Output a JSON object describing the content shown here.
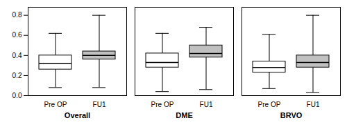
{
  "chart_data": {
    "type": "box",
    "groups": [
      "Overall",
      "DME",
      "BRVO"
    ],
    "categories": [
      "Pre OP",
      "FU1",
      "Pre OP",
      "FU1",
      "Pre OP",
      "FU1"
    ],
    "boxes": [
      {
        "group": "Overall",
        "whislo": 0.08,
        "q1": 0.26,
        "med": 0.32,
        "q3": 0.4,
        "whishi": 0.62
      },
      {
        "group": "Overall",
        "whislo": 0.08,
        "q1": 0.36,
        "med": 0.4,
        "q3": 0.44,
        "whishi": 0.8
      },
      {
        "group": "DME",
        "whislo": 0.04,
        "q1": 0.28,
        "med": 0.33,
        "q3": 0.42,
        "whishi": 0.62
      },
      {
        "group": "DME",
        "whislo": 0.06,
        "q1": 0.38,
        "med": 0.42,
        "q3": 0.5,
        "whishi": 0.68
      },
      {
        "group": "BRVO",
        "whislo": 0.07,
        "q1": 0.23,
        "med": 0.28,
        "q3": 0.34,
        "whishi": 0.61
      },
      {
        "group": "BRVO",
        "whislo": 0.03,
        "q1": 0.28,
        "med": 0.33,
        "q3": 0.4,
        "whishi": 0.8
      }
    ],
    "colors": [
      "white",
      "#c0c0c0",
      "white",
      "#c0c0c0",
      "white",
      "#c0c0c0"
    ],
    "ylim": [
      0.0,
      0.88
    ],
    "yticks": [
      {
        "value": 0.0,
        "label": "0.0"
      },
      0.2,
      0.4,
      0.6,
      0.8
    ],
    "grid": false
  }
}
